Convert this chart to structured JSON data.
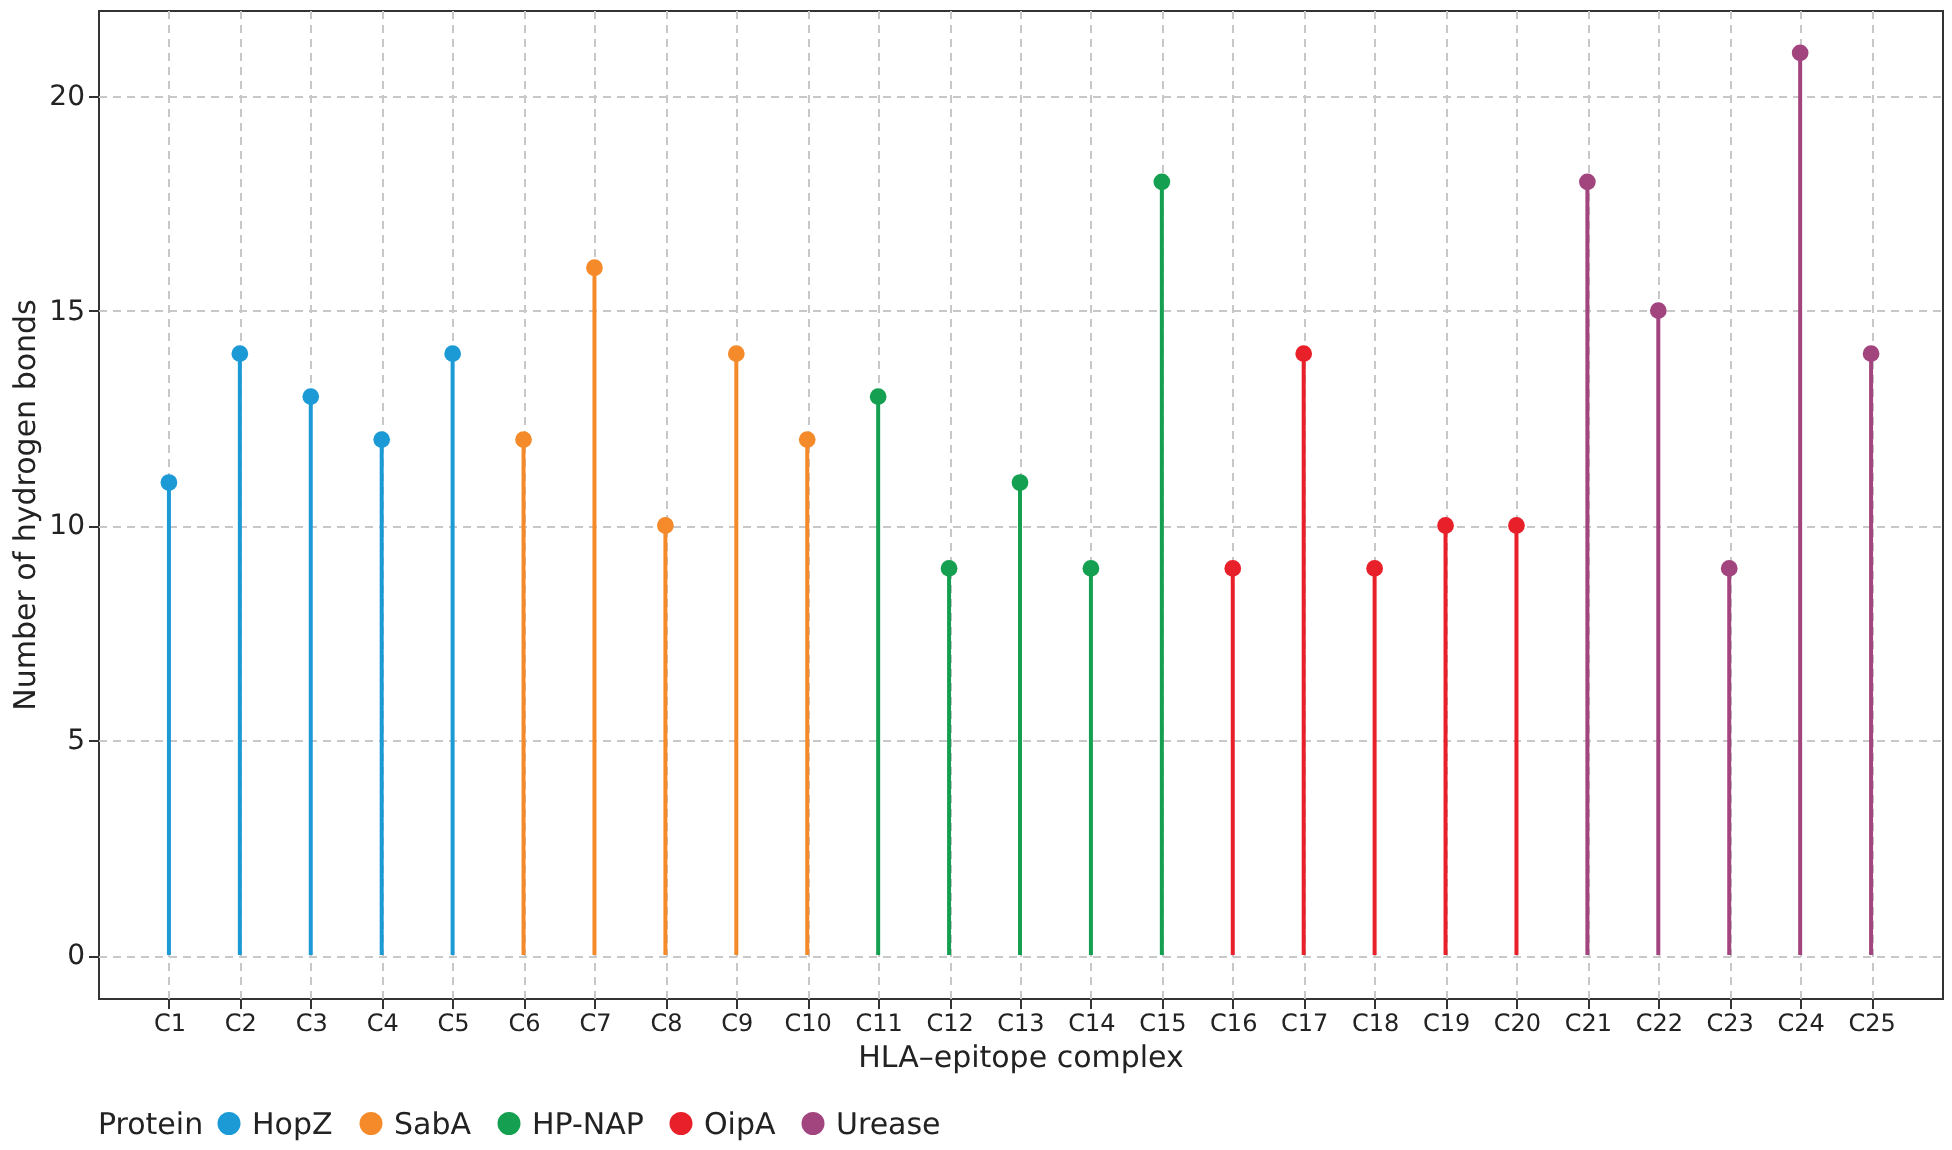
{
  "chart_data": {
    "type": "lollipop",
    "xlabel": "HLA–epitope complex",
    "ylabel": "Number of hydrogen bonds",
    "legend_title": "Protein",
    "categories": [
      "C1",
      "C2",
      "C3",
      "C4",
      "C5",
      "C6",
      "C7",
      "C8",
      "C9",
      "C10",
      "C11",
      "C12",
      "C13",
      "C14",
      "C15",
      "C16",
      "C17",
      "C18",
      "C19",
      "C20",
      "C21",
      "C22",
      "C23",
      "C24",
      "C25"
    ],
    "series": [
      {
        "name": "HopZ",
        "color": "#1b9ad6",
        "values": [
          11,
          14,
          13,
          12,
          14,
          null,
          null,
          null,
          null,
          null,
          null,
          null,
          null,
          null,
          null,
          null,
          null,
          null,
          null,
          null,
          null,
          null,
          null,
          null,
          null
        ]
      },
      {
        "name": "SabA",
        "color": "#f58a2a",
        "values": [
          null,
          null,
          null,
          null,
          null,
          12,
          16,
          10,
          14,
          12,
          null,
          null,
          null,
          null,
          null,
          null,
          null,
          null,
          null,
          null,
          null,
          null,
          null,
          null,
          null
        ]
      },
      {
        "name": "HP-NAP",
        "color": "#14a050",
        "values": [
          null,
          null,
          null,
          null,
          null,
          null,
          null,
          null,
          null,
          null,
          13,
          9,
          11,
          9,
          18,
          null,
          null,
          null,
          null,
          null,
          null,
          null,
          null,
          null,
          null
        ]
      },
      {
        "name": "OipA",
        "color": "#e8202a",
        "values": [
          null,
          null,
          null,
          null,
          null,
          null,
          null,
          null,
          null,
          null,
          null,
          null,
          null,
          null,
          null,
          9,
          14,
          9,
          10,
          10,
          null,
          null,
          null,
          null,
          null
        ]
      },
      {
        "name": "Urease",
        "color": "#a2457f",
        "values": [
          null,
          null,
          null,
          null,
          null,
          null,
          null,
          null,
          null,
          null,
          null,
          null,
          null,
          null,
          null,
          null,
          null,
          null,
          null,
          null,
          18,
          15,
          9,
          21,
          14
        ]
      }
    ],
    "ylim": [
      -1,
      22
    ],
    "yticks": [
      0,
      5,
      10,
      15,
      20
    ],
    "grid": true,
    "legend": "bottom",
    "marker": "circle",
    "line_style": "solid"
  }
}
